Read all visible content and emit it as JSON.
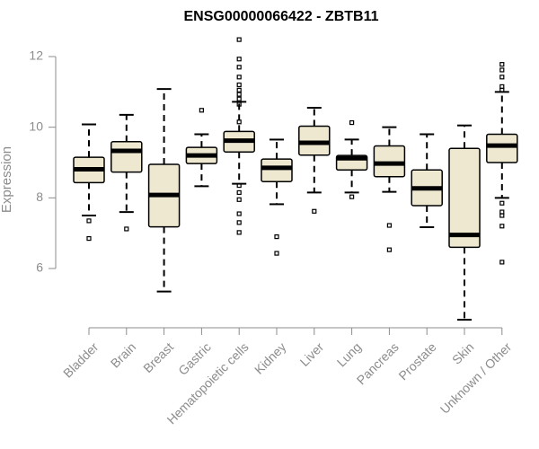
{
  "colors": {
    "box_fill": "#eee8d1",
    "box_stroke": "#000000",
    "axis": "#8c8c8c",
    "label": "#8c8c8c",
    "title": "#000000"
  },
  "chart_data": {
    "type": "box",
    "title": "ENSG00000066422 - ZBTB11",
    "xlabel": "",
    "ylabel": "Expression",
    "ylim": [
      4.4,
      12.6
    ],
    "yticks": [
      6,
      8,
      10,
      12
    ],
    "grid": false,
    "legend": "none",
    "categories": [
      "Bladder",
      "Brain",
      "Breast",
      "Gastric",
      "Hematopoietic cells",
      "Kidney",
      "Liver",
      "Lung",
      "Pancreas",
      "Prostate",
      "Skin",
      "Unknown / Other"
    ],
    "boxes": [
      {
        "category": "Bladder",
        "whisker_low": 7.5,
        "q1": 8.43,
        "median": 8.81,
        "q3": 9.15,
        "whisker_high": 10.08,
        "outliers": [
          7.35,
          6.85
        ]
      },
      {
        "category": "Brain",
        "whisker_low": 7.6,
        "q1": 8.73,
        "median": 9.33,
        "q3": 9.59,
        "whisker_high": 10.35,
        "outliers": [
          7.12
        ]
      },
      {
        "category": "Breast",
        "whisker_low": 5.35,
        "q1": 7.18,
        "median": 8.08,
        "q3": 8.95,
        "whisker_high": 11.08,
        "outliers": []
      },
      {
        "category": "Gastric",
        "whisker_low": 8.33,
        "q1": 8.97,
        "median": 9.2,
        "q3": 9.43,
        "whisker_high": 9.8,
        "outliers": [
          10.48
        ]
      },
      {
        "category": "Hematopoietic cells",
        "whisker_low": 8.4,
        "q1": 9.3,
        "median": 9.62,
        "q3": 9.88,
        "whisker_high": 10.72,
        "outliers": [
          12.48,
          11.93,
          11.7,
          11.42,
          11.2,
          11.05,
          10.93,
          10.8,
          10.65,
          10.15,
          8.35,
          8.15,
          7.95,
          7.55,
          7.3,
          7.02
        ]
      },
      {
        "category": "Kidney",
        "whisker_low": 7.82,
        "q1": 8.46,
        "median": 8.85,
        "q3": 9.1,
        "whisker_high": 9.65,
        "outliers": [
          6.9,
          6.43
        ]
      },
      {
        "category": "Liver",
        "whisker_low": 8.15,
        "q1": 9.21,
        "median": 9.56,
        "q3": 10.03,
        "whisker_high": 10.55,
        "outliers": [
          7.62
        ]
      },
      {
        "category": "Lung",
        "whisker_low": 8.15,
        "q1": 8.79,
        "median": 9.12,
        "q3": 9.2,
        "whisker_high": 9.65,
        "outliers": [
          10.13,
          8.03
        ]
      },
      {
        "category": "Pancreas",
        "whisker_low": 8.17,
        "q1": 8.6,
        "median": 8.97,
        "q3": 9.47,
        "whisker_high": 10.0,
        "outliers": [
          7.22,
          6.53
        ]
      },
      {
        "category": "Prostate",
        "whisker_low": 7.17,
        "q1": 7.78,
        "median": 8.27,
        "q3": 8.79,
        "whisker_high": 9.8,
        "outliers": []
      },
      {
        "category": "Skin",
        "whisker_low": 4.55,
        "q1": 6.6,
        "median": 6.95,
        "q3": 9.4,
        "whisker_high": 10.05,
        "outliers": []
      },
      {
        "category": "Unknown / Other",
        "whisker_low": 8.0,
        "q1": 9.0,
        "median": 9.48,
        "q3": 9.8,
        "whisker_high": 11.0,
        "outliers": [
          11.78,
          11.62,
          11.42,
          11.15,
          11.05,
          7.85,
          7.6,
          7.5,
          7.2,
          6.18
        ]
      }
    ]
  }
}
